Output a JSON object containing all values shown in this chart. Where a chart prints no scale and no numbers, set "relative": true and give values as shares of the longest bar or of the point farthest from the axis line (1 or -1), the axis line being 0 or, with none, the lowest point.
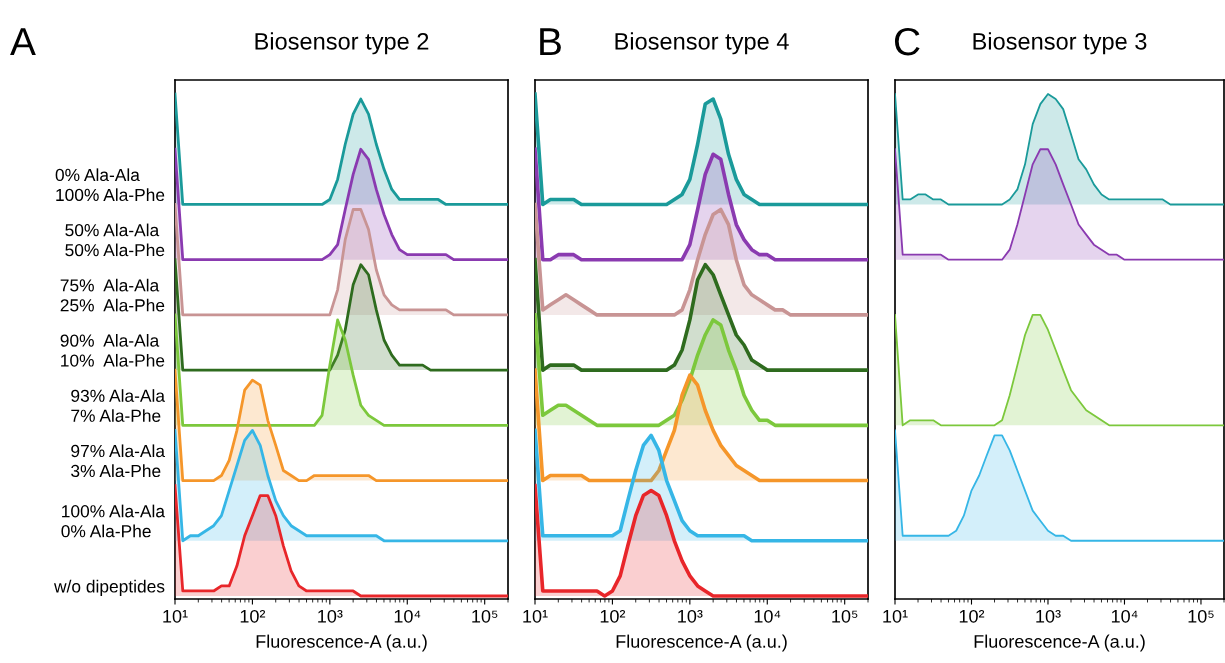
{
  "chart_data": [
    {
      "type": "area",
      "title": "Biosensor type 2",
      "xlabel": "Fluorescence-A (a.u.)",
      "annotations": [
        "A"
      ],
      "relative": true,
      "tick_labels": "x",
      "log": "x",
      "xlim": [
        10,
        200000
      ],
      "xticks": [
        {
          "value": 10,
          "label": "10¹"
        },
        {
          "value": 100,
          "label": "10²"
        },
        {
          "value": 1000,
          "label": "10³"
        },
        {
          "value": 10000,
          "label": "10⁴"
        },
        {
          "value": 100000,
          "label": "10⁵"
        }
      ],
      "x": [
        10,
        12.6,
        15.8,
        20,
        25.1,
        31.6,
        39.8,
        50.1,
        63.1,
        79.4,
        100,
        126,
        158,
        200,
        251,
        316,
        398,
        501,
        631,
        794,
        1000,
        1260,
        1580,
        2000,
        2510,
        3160,
        3980,
        5010,
        6310,
        7940,
        10000,
        12600,
        15800,
        20000,
        25100,
        31600,
        39800,
        50100,
        63100,
        79400,
        100000,
        126000,
        158000,
        200000
      ],
      "series": [
        {
          "name": "0% Ala-Ala\n100% Ala-Phe",
          "color": "#1a9a9a",
          "values": [
            1.0,
            0.78,
            0.78,
            0.78,
            0.78,
            0.78,
            0.78,
            0.78,
            0.78,
            0.78,
            0.78,
            0.78,
            0.78,
            0.78,
            0.78,
            0.78,
            0.78,
            0.78,
            0.78,
            0.78,
            0.79,
            0.83,
            0.9,
            0.96,
            0.99,
            0.96,
            0.9,
            0.85,
            0.81,
            0.79,
            0.79,
            0.79,
            0.79,
            0.79,
            0.79,
            0.78,
            0.78,
            0.78,
            0.78,
            0.78,
            0.78,
            0.78,
            0.78,
            0.78
          ]
        },
        {
          "name": "50% Ala-Ala\n50% Ala-Phe",
          "color": "#8a3ab0",
          "values": [
            0.89,
            0.67,
            0.67,
            0.67,
            0.67,
            0.67,
            0.67,
            0.67,
            0.67,
            0.67,
            0.67,
            0.67,
            0.67,
            0.67,
            0.67,
            0.67,
            0.67,
            0.67,
            0.67,
            0.67,
            0.68,
            0.7,
            0.77,
            0.84,
            0.89,
            0.87,
            0.81,
            0.76,
            0.72,
            0.69,
            0.68,
            0.68,
            0.68,
            0.68,
            0.68,
            0.68,
            0.67,
            0.67,
            0.67,
            0.67,
            0.67,
            0.67,
            0.67,
            0.67
          ]
        },
        {
          "name": "75%  Ala-Ala\n25%  Ala-Phe",
          "color": "#c89494",
          "values": [
            0.78,
            0.56,
            0.56,
            0.56,
            0.56,
            0.56,
            0.56,
            0.56,
            0.56,
            0.56,
            0.56,
            0.56,
            0.56,
            0.56,
            0.56,
            0.56,
            0.56,
            0.56,
            0.56,
            0.56,
            0.56,
            0.61,
            0.71,
            0.77,
            0.77,
            0.73,
            0.65,
            0.6,
            0.58,
            0.57,
            0.57,
            0.57,
            0.57,
            0.57,
            0.57,
            0.57,
            0.56,
            0.56,
            0.56,
            0.56,
            0.56,
            0.56,
            0.56,
            0.56
          ]
        },
        {
          "name": "90%  Ala-Ala\n10%  Ala-Phe",
          "color": "#2e6b1e",
          "values": [
            0.67,
            0.45,
            0.45,
            0.45,
            0.45,
            0.45,
            0.45,
            0.45,
            0.45,
            0.45,
            0.45,
            0.45,
            0.45,
            0.45,
            0.45,
            0.45,
            0.45,
            0.45,
            0.45,
            0.45,
            0.45,
            0.48,
            0.53,
            0.62,
            0.66,
            0.64,
            0.57,
            0.51,
            0.48,
            0.46,
            0.46,
            0.46,
            0.46,
            0.45,
            0.45,
            0.45,
            0.45,
            0.45,
            0.45,
            0.45,
            0.45,
            0.45,
            0.45,
            0.45
          ]
        },
        {
          "name": "93% Ala-Ala\n7% Ala-Phe",
          "color": "#7cc83c",
          "values": [
            0.56,
            0.34,
            0.34,
            0.34,
            0.34,
            0.34,
            0.34,
            0.34,
            0.34,
            0.34,
            0.34,
            0.34,
            0.34,
            0.34,
            0.34,
            0.34,
            0.34,
            0.34,
            0.34,
            0.36,
            0.46,
            0.55,
            0.51,
            0.44,
            0.38,
            0.36,
            0.35,
            0.34,
            0.34,
            0.34,
            0.34,
            0.34,
            0.34,
            0.34,
            0.34,
            0.34,
            0.34,
            0.34,
            0.34,
            0.34,
            0.34,
            0.34,
            0.34,
            0.34
          ]
        },
        {
          "name": "97% Ala-Ala\n3% Ala-Phe",
          "color": "#f5962a",
          "values": [
            0.45,
            0.23,
            0.23,
            0.23,
            0.23,
            0.23,
            0.24,
            0.27,
            0.33,
            0.41,
            0.43,
            0.42,
            0.35,
            0.3,
            0.25,
            0.24,
            0.23,
            0.23,
            0.24,
            0.24,
            0.24,
            0.24,
            0.24,
            0.24,
            0.24,
            0.24,
            0.23,
            0.23,
            0.23,
            0.23,
            0.23,
            0.23,
            0.23,
            0.23,
            0.23,
            0.23,
            0.23,
            0.23,
            0.23,
            0.23,
            0.23,
            0.23,
            0.23,
            0.23
          ]
        },
        {
          "name": "100% Ala-Ala\n0% Ala-Phe",
          "color": "#36b6e6",
          "values": [
            0.33,
            0.11,
            0.12,
            0.12,
            0.13,
            0.14,
            0.16,
            0.21,
            0.26,
            0.31,
            0.33,
            0.3,
            0.24,
            0.19,
            0.16,
            0.14,
            0.13,
            0.12,
            0.12,
            0.12,
            0.12,
            0.12,
            0.12,
            0.12,
            0.12,
            0.12,
            0.12,
            0.11,
            0.11,
            0.11,
            0.11,
            0.11,
            0.11,
            0.11,
            0.11,
            0.11,
            0.11,
            0.11,
            0.11,
            0.11,
            0.11,
            0.11,
            0.11,
            0.11
          ]
        },
        {
          "name": "w/o dipeptides",
          "color": "#e8262a",
          "values": [
            0.22,
            0.01,
            0.01,
            0.01,
            0.01,
            0.01,
            0.02,
            0.02,
            0.06,
            0.12,
            0.16,
            0.2,
            0.2,
            0.16,
            0.1,
            0.05,
            0.02,
            0.01,
            0.01,
            0.01,
            0.01,
            0.01,
            0.01,
            0.01,
            0,
            0,
            0,
            0,
            0,
            0,
            0,
            0,
            0,
            0,
            0,
            0,
            0,
            0,
            0,
            0,
            0,
            0,
            0,
            0
          ]
        }
      ]
    },
    {
      "type": "area",
      "title": "Biosensor type 4",
      "xlabel": "Fluorescence-A (a.u.)",
      "annotations": [
        "B"
      ],
      "relative": true,
      "tick_labels": "x",
      "log": "x",
      "xlim": [
        10,
        200000
      ],
      "xticks": [
        {
          "value": 10,
          "label": "10¹"
        },
        {
          "value": 100,
          "label": "10²"
        },
        {
          "value": 1000,
          "label": "10³"
        },
        {
          "value": 10000,
          "label": "10⁴"
        },
        {
          "value": 100000,
          "label": "10⁵"
        }
      ],
      "x": [
        10,
        12.6,
        15.8,
        20,
        25.1,
        31.6,
        39.8,
        50.1,
        63.1,
        79.4,
        100,
        126,
        158,
        200,
        251,
        316,
        398,
        501,
        631,
        794,
        1000,
        1260,
        1580,
        2000,
        2510,
        3160,
        3980,
        5010,
        6310,
        7940,
        10000,
        12600,
        15800,
        20000,
        25100,
        31600,
        39800,
        50100,
        63100,
        79400,
        100000,
        126000,
        158000,
        200000
      ],
      "series": [
        {
          "color": "#1a9a9a",
          "values": [
            1.0,
            0.78,
            0.79,
            0.79,
            0.79,
            0.79,
            0.78,
            0.78,
            0.78,
            0.78,
            0.78,
            0.78,
            0.78,
            0.78,
            0.78,
            0.78,
            0.78,
            0.78,
            0.79,
            0.8,
            0.83,
            0.9,
            0.98,
            0.99,
            0.95,
            0.88,
            0.83,
            0.8,
            0.79,
            0.78,
            0.78,
            0.78,
            0.78,
            0.78,
            0.78,
            0.78,
            0.78,
            0.78,
            0.78,
            0.78,
            0.78,
            0.78,
            0.78,
            0.78
          ]
        },
        {
          "color": "#8a3ab0",
          "values": [
            0.89,
            0.67,
            0.67,
            0.68,
            0.68,
            0.68,
            0.67,
            0.67,
            0.67,
            0.67,
            0.67,
            0.67,
            0.67,
            0.67,
            0.67,
            0.67,
            0.67,
            0.67,
            0.67,
            0.67,
            0.7,
            0.77,
            0.84,
            0.88,
            0.87,
            0.8,
            0.74,
            0.71,
            0.69,
            0.68,
            0.68,
            0.67,
            0.67,
            0.67,
            0.67,
            0.67,
            0.67,
            0.67,
            0.67,
            0.67,
            0.67,
            0.67,
            0.67,
            0.67
          ]
        },
        {
          "color": "#c89494",
          "values": [
            0.78,
            0.57,
            0.58,
            0.59,
            0.6,
            0.59,
            0.58,
            0.57,
            0.56,
            0.56,
            0.56,
            0.56,
            0.56,
            0.56,
            0.56,
            0.56,
            0.56,
            0.56,
            0.56,
            0.57,
            0.61,
            0.67,
            0.72,
            0.76,
            0.77,
            0.74,
            0.67,
            0.62,
            0.6,
            0.59,
            0.58,
            0.57,
            0.57,
            0.56,
            0.56,
            0.56,
            0.56,
            0.56,
            0.56,
            0.56,
            0.56,
            0.56,
            0.56,
            0.56
          ]
        },
        {
          "color": "#2e6b1e",
          "values": [
            0.67,
            0.45,
            0.46,
            0.46,
            0.46,
            0.46,
            0.45,
            0.45,
            0.45,
            0.45,
            0.45,
            0.45,
            0.45,
            0.45,
            0.45,
            0.45,
            0.45,
            0.45,
            0.46,
            0.49,
            0.55,
            0.63,
            0.66,
            0.64,
            0.6,
            0.56,
            0.52,
            0.5,
            0.47,
            0.46,
            0.45,
            0.45,
            0.45,
            0.45,
            0.45,
            0.45,
            0.45,
            0.45,
            0.45,
            0.45,
            0.45,
            0.45,
            0.45,
            0.45
          ]
        },
        {
          "color": "#7cc83c",
          "values": [
            0.56,
            0.36,
            0.37,
            0.38,
            0.38,
            0.37,
            0.36,
            0.35,
            0.34,
            0.34,
            0.34,
            0.34,
            0.34,
            0.34,
            0.34,
            0.34,
            0.34,
            0.35,
            0.36,
            0.39,
            0.43,
            0.48,
            0.52,
            0.55,
            0.54,
            0.49,
            0.45,
            0.4,
            0.37,
            0.35,
            0.35,
            0.34,
            0.34,
            0.34,
            0.34,
            0.34,
            0.34,
            0.34,
            0.34,
            0.34,
            0.34,
            0.34,
            0.34,
            0.34
          ]
        },
        {
          "color": "#f5962a",
          "values": [
            0.45,
            0.23,
            0.24,
            0.24,
            0.24,
            0.24,
            0.24,
            0.23,
            0.23,
            0.23,
            0.23,
            0.23,
            0.23,
            0.23,
            0.23,
            0.23,
            0.25,
            0.29,
            0.33,
            0.4,
            0.44,
            0.42,
            0.37,
            0.33,
            0.3,
            0.28,
            0.26,
            0.25,
            0.24,
            0.23,
            0.23,
            0.23,
            0.23,
            0.23,
            0.23,
            0.23,
            0.23,
            0.23,
            0.23,
            0.23,
            0.23,
            0.23,
            0.23,
            0.23
          ]
        },
        {
          "color": "#36b6e6",
          "values": [
            0.33,
            0.12,
            0.12,
            0.12,
            0.12,
            0.12,
            0.12,
            0.12,
            0.12,
            0.12,
            0.12,
            0.13,
            0.19,
            0.25,
            0.3,
            0.32,
            0.29,
            0.23,
            0.19,
            0.15,
            0.13,
            0.12,
            0.12,
            0.12,
            0.12,
            0.12,
            0.12,
            0.12,
            0.11,
            0.11,
            0.11,
            0.11,
            0.11,
            0.11,
            0.11,
            0.11,
            0.11,
            0.11,
            0.11,
            0.11,
            0.11,
            0.11,
            0.11,
            0.11
          ]
        },
        {
          "color": "#e8262a",
          "values": [
            0.22,
            0.01,
            0.01,
            0.01,
            0.01,
            0.01,
            0.01,
            0.01,
            0.01,
            0,
            0.01,
            0.04,
            0.1,
            0.16,
            0.2,
            0.21,
            0.2,
            0.16,
            0.11,
            0.07,
            0.04,
            0.02,
            0.01,
            0,
            0,
            0,
            0,
            0,
            0,
            0,
            0,
            0,
            0,
            0,
            0,
            0,
            0,
            0,
            0,
            0,
            0,
            0,
            0,
            0
          ]
        }
      ]
    },
    {
      "type": "area",
      "title": "Biosensor type 3",
      "xlabel": "Fluorescence-A (a.u.)",
      "annotations": [
        "C"
      ],
      "relative": true,
      "tick_labels": "x",
      "log": "x",
      "xlim": [
        10,
        200000
      ],
      "xticks": [
        {
          "value": 10,
          "label": "10¹"
        },
        {
          "value": 100,
          "label": "10²"
        },
        {
          "value": 1000,
          "label": "10³"
        },
        {
          "value": 10000,
          "label": "10⁴"
        },
        {
          "value": 100000,
          "label": "10⁵"
        }
      ],
      "x": [
        10,
        12.6,
        15.8,
        20,
        25.1,
        31.6,
        39.8,
        50.1,
        63.1,
        79.4,
        100,
        126,
        158,
        200,
        251,
        316,
        398,
        501,
        631,
        794,
        1000,
        1260,
        1580,
        2000,
        2510,
        3160,
        3980,
        5010,
        6310,
        7940,
        10000,
        12600,
        15800,
        20000,
        25100,
        31600,
        39800,
        50100,
        63100,
        79400,
        100000,
        126000,
        158000,
        200000
      ],
      "series": [
        {
          "color": "#1a9a9a",
          "values": [
            1.0,
            0.79,
            0.79,
            0.8,
            0.8,
            0.79,
            0.79,
            0.78,
            0.78,
            0.78,
            0.78,
            0.78,
            0.78,
            0.78,
            0.78,
            0.79,
            0.81,
            0.86,
            0.94,
            0.98,
            1.0,
            0.99,
            0.97,
            0.92,
            0.87,
            0.85,
            0.82,
            0.8,
            0.79,
            0.79,
            0.79,
            0.79,
            0.79,
            0.79,
            0.79,
            0.79,
            0.78,
            0.78,
            0.78,
            0.78,
            0.78,
            0.78,
            0.78,
            0.78
          ]
        },
        {
          "color": "#8a3ab0",
          "values": [
            0.89,
            0.68,
            0.68,
            0.68,
            0.68,
            0.68,
            0.68,
            0.67,
            0.67,
            0.67,
            0.67,
            0.67,
            0.67,
            0.67,
            0.67,
            0.69,
            0.74,
            0.8,
            0.86,
            0.89,
            0.89,
            0.86,
            0.82,
            0.78,
            0.74,
            0.72,
            0.7,
            0.69,
            0.68,
            0.68,
            0.67,
            0.67,
            0.67,
            0.67,
            0.67,
            0.67,
            0.67,
            0.67,
            0.67,
            0.67,
            0.67,
            0.67,
            0.67,
            0.67
          ]
        },
        {
          "color": "#7cc83c",
          "values": [
            0.56,
            0.34,
            0.35,
            0.35,
            0.35,
            0.35,
            0.34,
            0.34,
            0.34,
            0.34,
            0.34,
            0.34,
            0.34,
            0.34,
            0.35,
            0.4,
            0.46,
            0.52,
            0.56,
            0.56,
            0.53,
            0.49,
            0.45,
            0.41,
            0.39,
            0.37,
            0.36,
            0.35,
            0.34,
            0.34,
            0.34,
            0.34,
            0.34,
            0.34,
            0.34,
            0.34,
            0.34,
            0.34,
            0.34,
            0.34,
            0.34,
            0.34,
            0.34,
            0.34
          ]
        },
        {
          "color": "#36b6e6",
          "values": [
            0.33,
            0.12,
            0.12,
            0.12,
            0.12,
            0.12,
            0.12,
            0.12,
            0.13,
            0.16,
            0.21,
            0.24,
            0.28,
            0.32,
            0.32,
            0.29,
            0.25,
            0.21,
            0.17,
            0.15,
            0.13,
            0.12,
            0.12,
            0.11,
            0.11,
            0.11,
            0.11,
            0.11,
            0.11,
            0.11,
            0.11,
            0.11,
            0.11,
            0.11,
            0.11,
            0.11,
            0.11,
            0.11,
            0.11,
            0.11,
            0.11,
            0.11,
            0.11,
            0.11
          ]
        }
      ]
    }
  ]
}
